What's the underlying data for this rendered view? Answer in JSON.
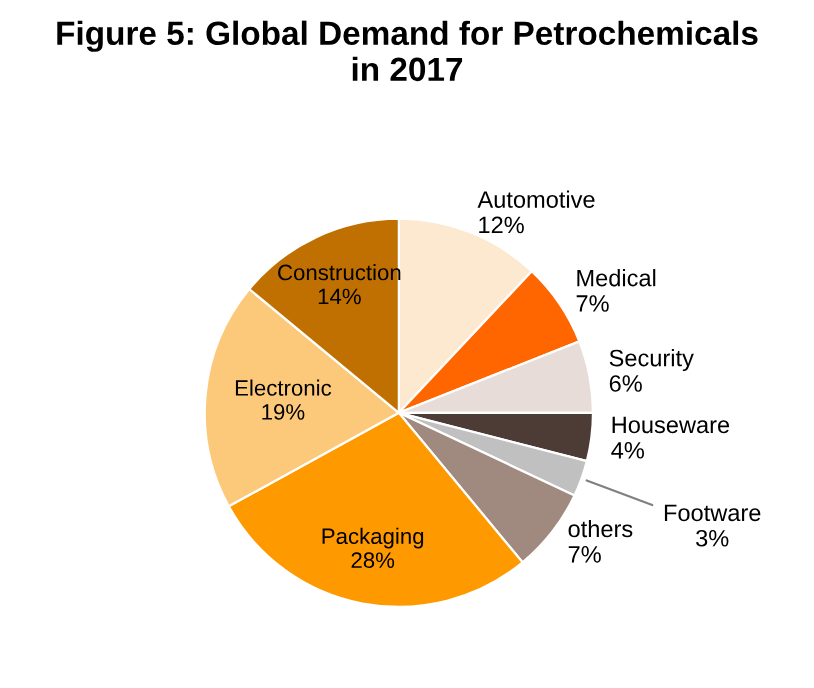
{
  "chart_data": {
    "type": "pie",
    "title": "Figure 5: Global Demand for Petrochemicals\nin 2017",
    "categories": [
      "Automotive",
      "Medical",
      "Security",
      "Houseware",
      "Footware",
      "others",
      "Packaging",
      "Electronic",
      "Construction"
    ],
    "values": [
      12,
      7,
      6,
      4,
      3,
      7,
      28,
      19,
      14
    ],
    "colors": [
      "#fde9d0",
      "#ff6600",
      "#e8dcd8",
      "#4d3b36",
      "#c0c0c0",
      "#a08a80",
      "#ff9900",
      "#fcc97a",
      "#c07000"
    ],
    "value_labels": [
      "12%",
      "7%",
      "6%",
      "4%",
      "3%",
      "7%",
      "28%",
      "19%",
      "14%"
    ]
  }
}
